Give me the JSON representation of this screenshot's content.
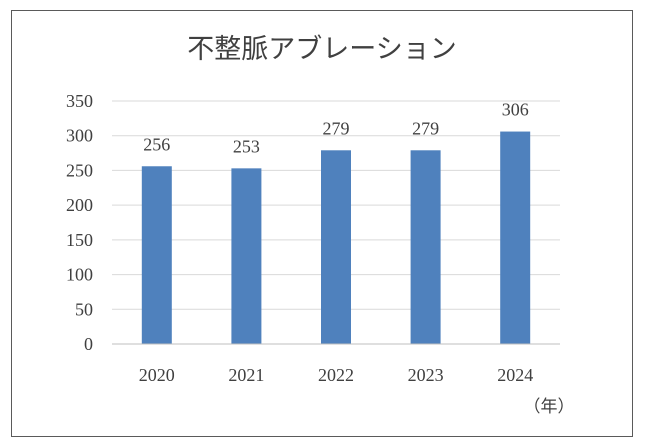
{
  "chart_data": {
    "type": "bar",
    "title": "不整脈アブレーション",
    "categories": [
      "2020",
      "2021",
      "2022",
      "2023",
      "2024"
    ],
    "values": [
      256,
      253,
      279,
      279,
      306
    ],
    "data_labels": [
      "256",
      "253",
      "279",
      "279",
      "306"
    ],
    "x_unit_label": "（年）",
    "ylim": [
      0,
      350
    ],
    "y_ticks": [
      0,
      50,
      100,
      150,
      200,
      250,
      300,
      350
    ],
    "grid": true,
    "legend": "none",
    "bar_color": "#4f81bd"
  }
}
